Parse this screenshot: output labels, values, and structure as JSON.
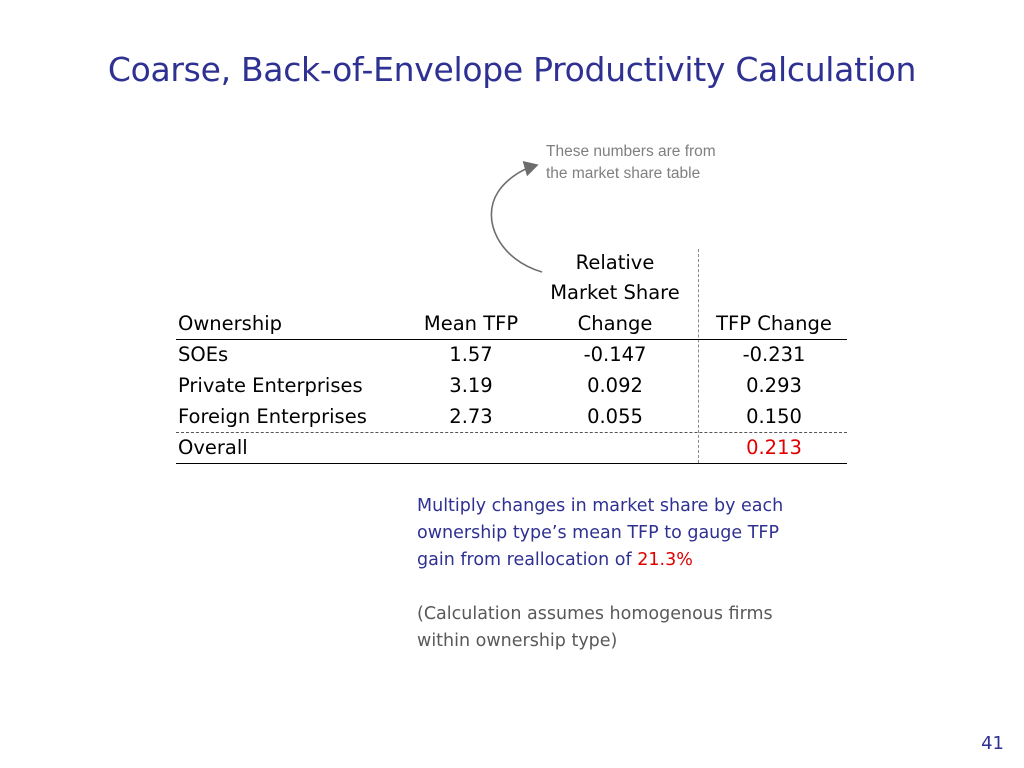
{
  "title": "Coarse, Back-of-Envelope Productivity Calculation",
  "note": {
    "line1": "These numbers are from",
    "line2": "the market share table"
  },
  "table": {
    "headers": {
      "ownership": "Ownership",
      "mean_tfp": "Mean TFP",
      "rel_line1": "Relative",
      "rel_line2": "Market Share",
      "rel_line3": "Change",
      "tfp_change": "TFP Change"
    },
    "rows": [
      {
        "ownership": "SOEs",
        "mean_tfp": "1.57",
        "rel_change": "-0.147",
        "tfp_change": "-0.231"
      },
      {
        "ownership": "Private Enterprises",
        "mean_tfp": "3.19",
        "rel_change": "0.092",
        "tfp_change": "0.293"
      },
      {
        "ownership": "Foreign Enterprises",
        "mean_tfp": "2.73",
        "rel_change": "0.055",
        "tfp_change": "0.150"
      }
    ],
    "overall": {
      "label": "Overall",
      "tfp_change": "0.213"
    }
  },
  "explain": {
    "line1": "Multiply changes in market share by each",
    "line2": "ownership type’s mean TFP to gauge TFP",
    "line3_prefix": "gain from reallocation of ",
    "line3_value": "21.3%"
  },
  "assume": {
    "line1": "(Calculation assumes homogenous firms",
    "line2": "within ownership type)"
  },
  "page_number": "41",
  "colors": {
    "title": "#2e3192",
    "highlight": "#e00000",
    "note": "#7f7f7f"
  }
}
